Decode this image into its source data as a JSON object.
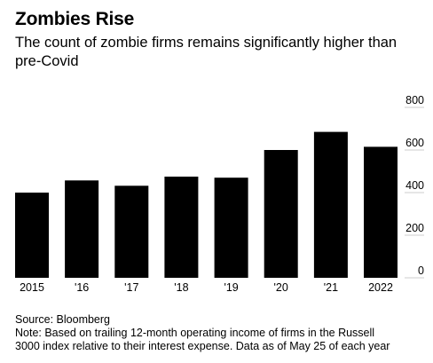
{
  "header": {
    "title": "Zombies Rise",
    "subtitle": "The count of zombie firms remains significantly higher than pre-Covid"
  },
  "chart_data": {
    "type": "bar",
    "title": "Zombies Rise",
    "subtitle": "The count of zombie firms remains significantly higher than pre-Covid",
    "categories": [
      "2015",
      "'16",
      "'17",
      "'18",
      "'19",
      "'20",
      "'21",
      "2022"
    ],
    "values": [
      400,
      457,
      432,
      475,
      470,
      600,
      685,
      615
    ],
    "xlabel": "",
    "ylabel": "",
    "ylim": [
      0,
      800
    ],
    "yticks": [
      "800",
      "600",
      "400",
      "200",
      "0"
    ],
    "y_axis_side": "right",
    "grid": false,
    "bar_color": "#000000"
  },
  "footer": {
    "source": "Source: Bloomberg",
    "note_line1": "Note: Based on trailing 12-month operating income of firms in the Russell",
    "note_line2": "3000 index relative to their interest expense. Data as of May 25 of each year"
  }
}
